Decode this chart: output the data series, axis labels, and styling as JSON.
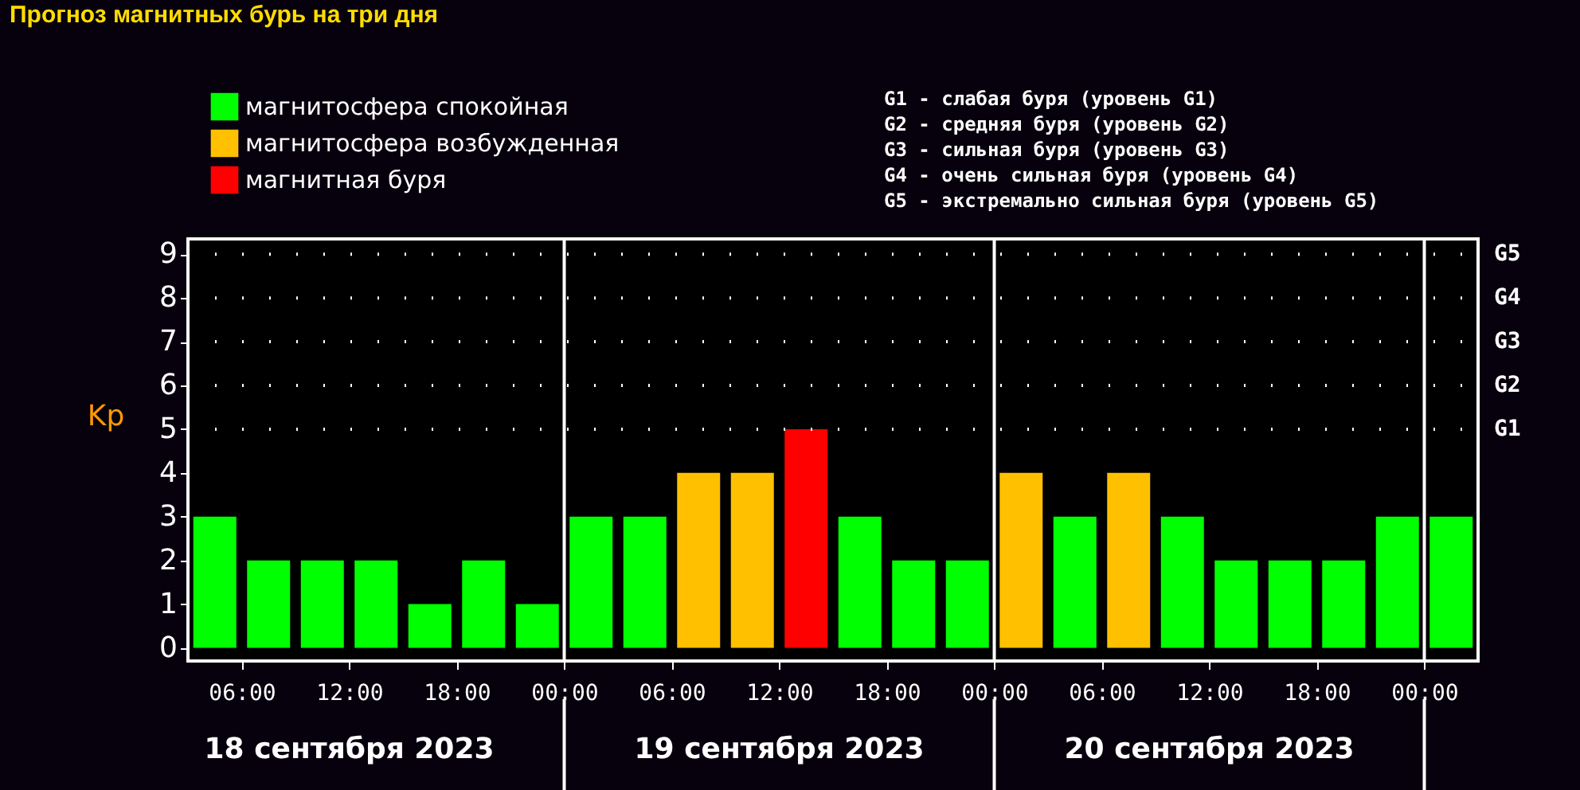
{
  "chart_data": {
    "type": "bar",
    "title": "Прогноз магнитных бурь на три дня",
    "ylabel": "Kp",
    "x": [
      "2023-09-18T04:30",
      "2023-09-18T07:30",
      "2023-09-18T10:30",
      "2023-09-18T13:30",
      "2023-09-18T16:30",
      "2023-09-18T19:30",
      "2023-09-18T22:30",
      "2023-09-19T01:30",
      "2023-09-19T04:30",
      "2023-09-19T07:30",
      "2023-09-19T10:30",
      "2023-09-19T13:30",
      "2023-09-19T16:30",
      "2023-09-19T19:30",
      "2023-09-19T22:30",
      "2023-09-20T01:30",
      "2023-09-20T04:30",
      "2023-09-20T07:30",
      "2023-09-20T10:30",
      "2023-09-20T13:30",
      "2023-09-20T16:30",
      "2023-09-20T19:30",
      "2023-09-20T22:30",
      "2023-09-21T01:30"
    ],
    "series": [
      {
        "name": "магнитосфера спокойная",
        "color": "#00ff00",
        "values": [
          3,
          2,
          2,
          2,
          1,
          2,
          1,
          3,
          3,
          null,
          null,
          null,
          3,
          2,
          2,
          null,
          3,
          null,
          3,
          2,
          2,
          2,
          3,
          3
        ]
      },
      {
        "name": "магнитосфера возбужденная",
        "color": "#ffc000",
        "values": [
          null,
          null,
          null,
          null,
          null,
          null,
          null,
          null,
          null,
          4,
          4,
          null,
          null,
          null,
          null,
          4,
          null,
          4,
          null,
          null,
          null,
          null,
          null,
          null
        ]
      },
      {
        "name": "магнитная буря",
        "color": "#ff0000",
        "values": [
          null,
          null,
          null,
          null,
          null,
          null,
          null,
          null,
          null,
          null,
          null,
          5,
          null,
          null,
          null,
          null,
          null,
          null,
          null,
          null,
          null,
          null,
          null,
          null
        ]
      }
    ],
    "stacked": true,
    "xlim": [
      "2023-09-18T03:00",
      "2023-09-21T03:00"
    ],
    "xticks": [
      {
        "value": "2023-09-18T06:00",
        "label": "06:00"
      },
      {
        "value": "2023-09-18T12:00",
        "label": "12:00"
      },
      {
        "value": "2023-09-18T18:00",
        "label": "18:00"
      },
      {
        "value": "2023-09-19T00:00",
        "label": "00:00"
      },
      {
        "value": "2023-09-19T06:00",
        "label": "06:00"
      },
      {
        "value": "2023-09-19T12:00",
        "label": "12:00"
      },
      {
        "value": "2023-09-19T18:00",
        "label": "18:00"
      },
      {
        "value": "2023-09-20T00:00",
        "label": "00:00"
      },
      {
        "value": "2023-09-20T06:00",
        "label": "06:00"
      },
      {
        "value": "2023-09-20T12:00",
        "label": "12:00"
      },
      {
        "value": "2023-09-20T18:00",
        "label": "18:00"
      },
      {
        "value": "2023-09-21T00:00",
        "label": "00:00"
      }
    ],
    "ylim": [
      -0.3,
      9.35
    ],
    "yticks": [
      0,
      1,
      2,
      3,
      4,
      5,
      6,
      7,
      8,
      9
    ],
    "ref_lines": [
      {
        "axis": "x",
        "value": "2023-09-19T00:00",
        "color": "#ffffff"
      },
      {
        "axis": "x",
        "value": "2023-09-20T00:00",
        "color": "#ffffff"
      },
      {
        "axis": "x",
        "value": "2023-09-21T00:00",
        "color": "#ffffff"
      },
      {
        "axis": "y",
        "value": 5,
        "label": "G1",
        "color": "#ffffff",
        "line_style": "dotted"
      },
      {
        "axis": "y",
        "value": 6,
        "label": "G2",
        "color": "#ffffff",
        "line_style": "dotted"
      },
      {
        "axis": "y",
        "value": 7,
        "label": "G3",
        "color": "#ffffff",
        "line_style": "dotted"
      },
      {
        "axis": "y",
        "value": 8,
        "label": "G4",
        "color": "#ffffff",
        "line_style": "dotted"
      },
      {
        "axis": "y",
        "value": 9,
        "label": "G5",
        "color": "#ffffff",
        "line_style": "dotted"
      }
    ],
    "annotations": [
      "G1 - слабая буря (уровень G1)",
      "G2 - средняя буря (уровень G2)",
      "G3 - сильная буря (уровень G3)",
      "G4 - очень сильная буря (уровень G4)",
      "G5 - экстремально сильная буря (уровень G5)",
      "18 сентября 2023",
      "19 сентября 2023",
      "20 сентября 2023"
    ],
    "legend": "top left"
  }
}
